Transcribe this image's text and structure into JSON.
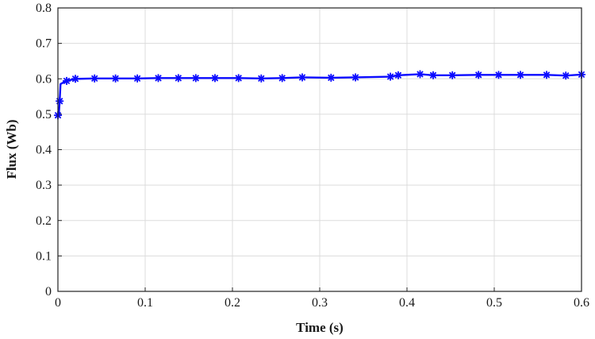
{
  "chart_data": {
    "type": "line",
    "title": "",
    "xlabel": "Time (s)",
    "ylabel": "Flux (Wb)",
    "xlim": [
      0,
      0.6
    ],
    "ylim": [
      0,
      0.8
    ],
    "xticks": [
      "0",
      "0.1",
      "0.2",
      "0.3",
      "0.4",
      "0.5",
      "0.6"
    ],
    "yticks": [
      "0",
      "0.1",
      "0.2",
      "0.3",
      "0.4",
      "0.5",
      "0.6",
      "0.7",
      "0.8"
    ],
    "grid": true,
    "legend": "none",
    "color": "#0b0bff",
    "marker": "asterisk",
    "series": [
      {
        "x": [
          0,
          0.001,
          0.002,
          0.003,
          0.005,
          0.007,
          0.01,
          0.02,
          0.025,
          0.042,
          0.066,
          0.091,
          0.115,
          0.138,
          0.158,
          0.18,
          0.207,
          0.233,
          0.257,
          0.28,
          0.313,
          0.341,
          0.381,
          0.39,
          0.415,
          0.43,
          0.452,
          0.482,
          0.505,
          0.53,
          0.56,
          0.582,
          0.6
        ],
        "y": [
          0.497,
          0.497,
          0.537,
          0.585,
          0.588,
          0.59,
          0.594,
          0.6,
          0.6,
          0.601,
          0.601,
          0.601,
          0.602,
          0.602,
          0.602,
          0.602,
          0.602,
          0.601,
          0.602,
          0.604,
          0.603,
          0.604,
          0.606,
          0.61,
          0.613,
          0.61,
          0.61,
          0.611,
          0.611,
          0.611,
          0.611,
          0.609,
          0.612
        ],
        "markers_at": [
          0,
          2,
          6,
          7,
          9,
          10,
          11,
          12,
          13,
          14,
          15,
          16,
          17,
          18,
          19,
          20,
          21,
          22,
          23,
          24,
          25,
          26,
          27,
          28,
          29,
          30,
          31,
          32
        ]
      }
    ]
  }
}
